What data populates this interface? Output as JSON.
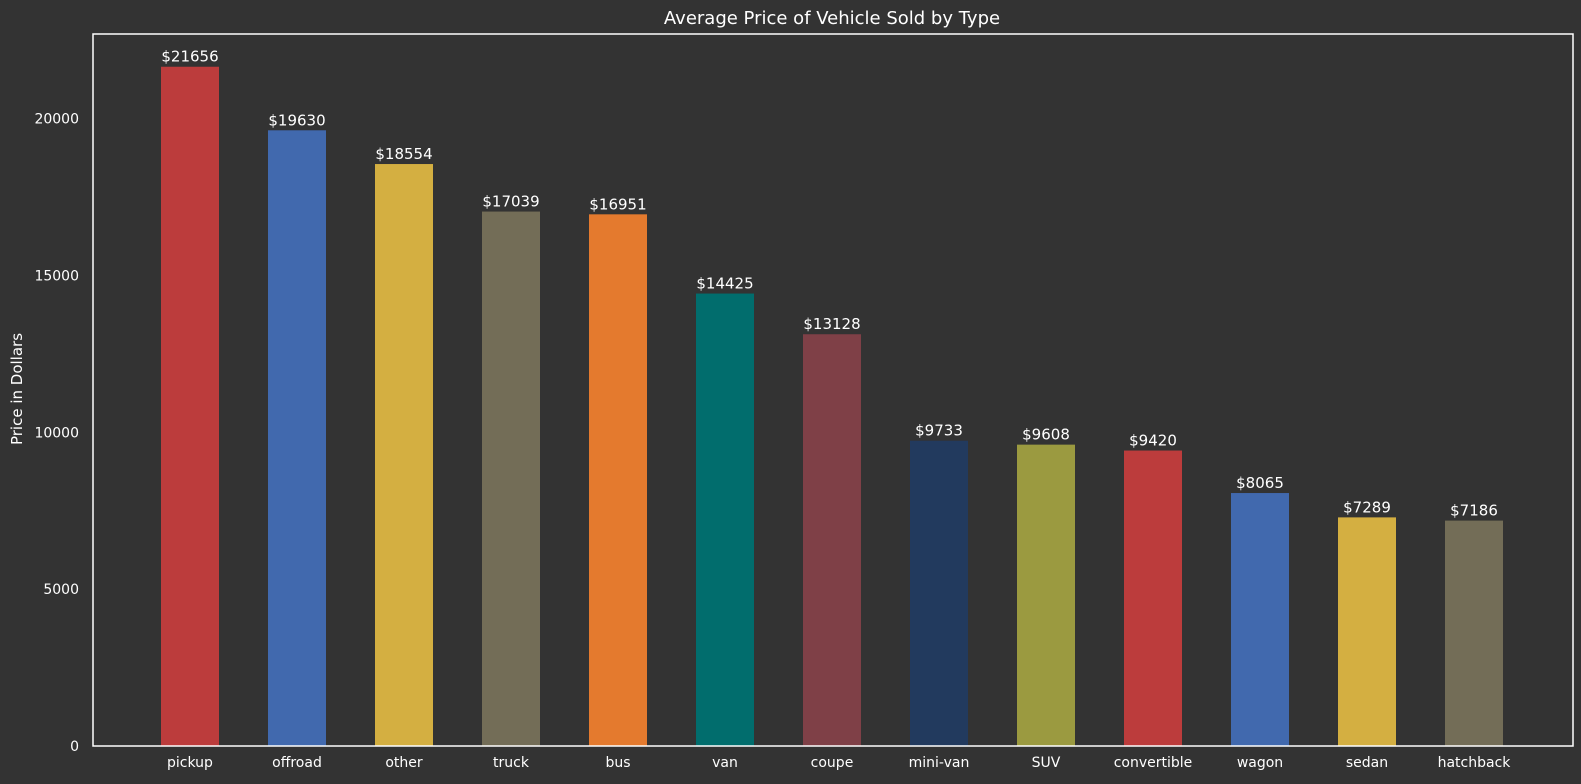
{
  "chart_data": {
    "type": "bar",
    "title": "Average Price of Vehicle Sold by Type",
    "xlabel": "",
    "ylabel": "Price in Dollars",
    "ylim": [
      0,
      22700
    ],
    "yticks": [
      0,
      5000,
      10000,
      15000,
      20000
    ],
    "categories": [
      "pickup",
      "offroad",
      "other",
      "truck",
      "bus",
      "van",
      "coupe",
      "mini-van",
      "SUV",
      "convertible",
      "wagon",
      "sedan",
      "hatchback"
    ],
    "values": [
      21656,
      19630,
      18554,
      17039,
      16951,
      14425,
      13128,
      9733,
      9608,
      9420,
      8065,
      7289,
      7186
    ],
    "data_labels": [
      "$21656",
      "$19630",
      "$18554",
      "$17039",
      "$16951",
      "$14425",
      "$13128",
      "$9733",
      "$9608",
      "$9420",
      "$8065",
      "$7289",
      "$7186"
    ],
    "colors": [
      "#bc3c3c",
      "#4169ae",
      "#d4af41",
      "#736d57",
      "#e47a2e",
      "#016d6d",
      "#7f4047",
      "#223a5e",
      "#9b9a40",
      "#bc3c3c",
      "#4169ae",
      "#d4af41",
      "#736d57"
    ],
    "grid": false,
    "legend": "none",
    "background": "#333333",
    "frame_color": "#ffffff"
  }
}
